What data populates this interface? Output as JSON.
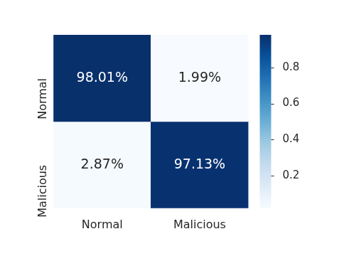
{
  "chart_data": {
    "type": "heatmap",
    "categories": [
      "Normal",
      "Malicious"
    ],
    "rows": [
      "Normal",
      "Malicious"
    ],
    "cells": [
      [
        0.9801,
        0.0199
      ],
      [
        0.0287,
        0.9713
      ]
    ],
    "cell_labels": [
      [
        "98.01%",
        "1.99%"
      ],
      [
        "2.87%",
        "97.13%"
      ]
    ],
    "color": "Blues",
    "colorbar_range": [
      0.0199,
      0.9801
    ],
    "colorbar_ticks": [
      0.2,
      0.4,
      0.6,
      0.8
    ],
    "data_labels": true
  }
}
